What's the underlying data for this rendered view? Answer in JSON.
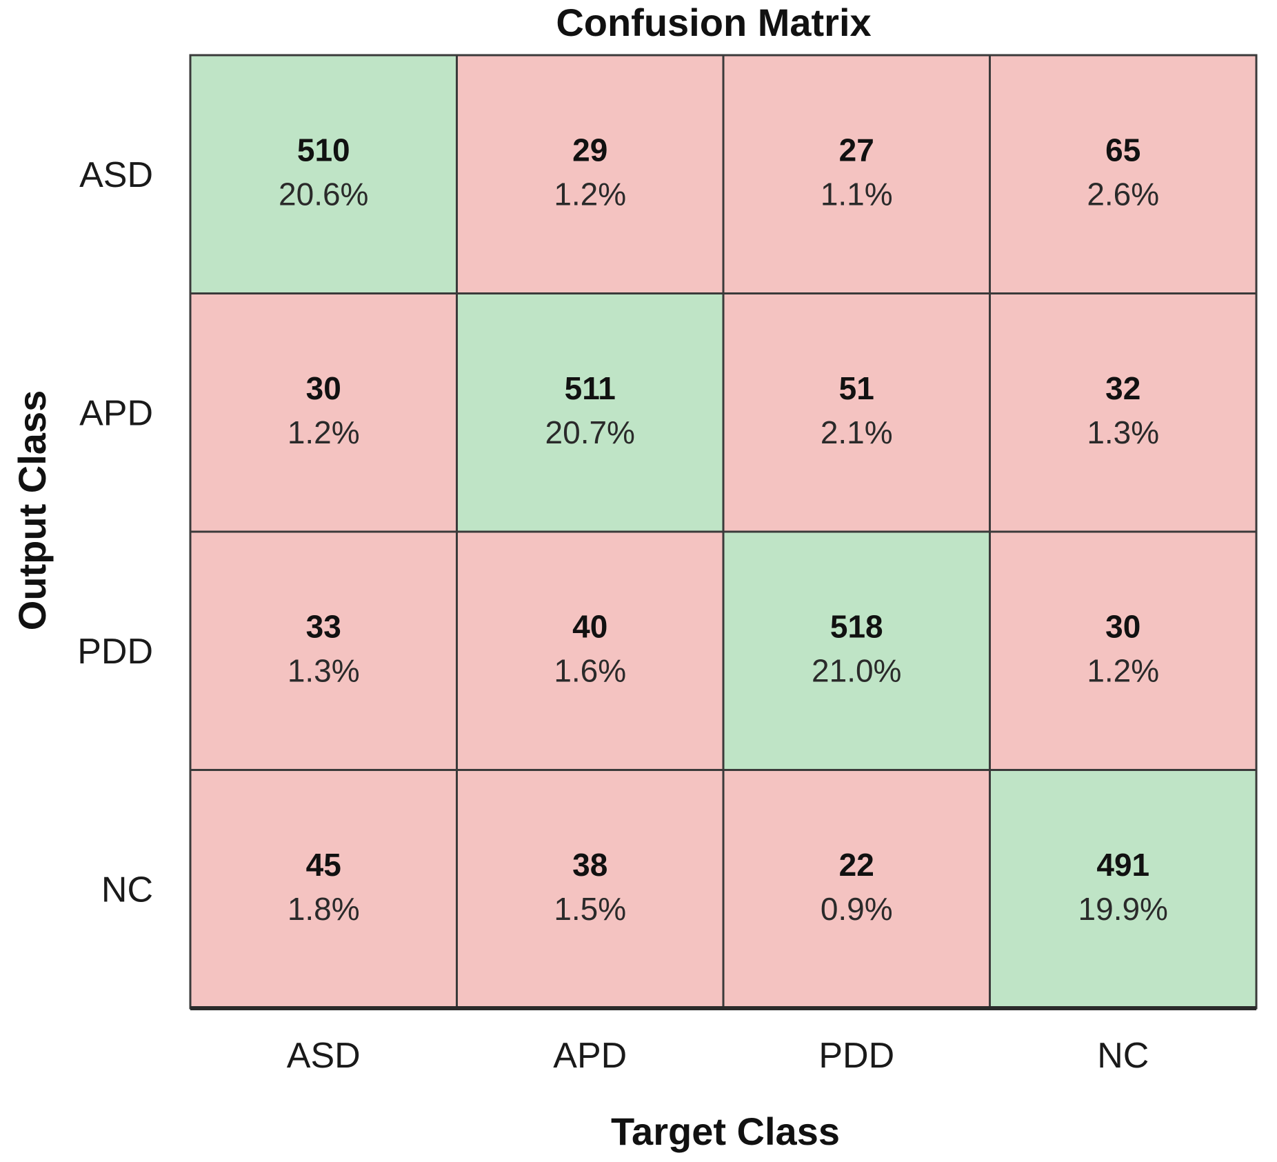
{
  "chart_data": {
    "type": "heatmap",
    "title": "Confusion Matrix",
    "xlabel": "Target Class",
    "ylabel": "Output Class",
    "x_categories": [
      "ASD",
      "APD",
      "PDD",
      "NC"
    ],
    "y_categories": [
      "ASD",
      "APD",
      "PDD",
      "NC"
    ],
    "counts": [
      [
        510,
        29,
        27,
        65
      ],
      [
        30,
        511,
        51,
        32
      ],
      [
        33,
        40,
        518,
        30
      ],
      [
        45,
        38,
        22,
        491
      ]
    ],
    "percentages": [
      [
        "20.6%",
        "1.2%",
        "1.1%",
        "2.6%"
      ],
      [
        "1.2%",
        "20.7%",
        "2.1%",
        "1.3%"
      ],
      [
        "1.3%",
        "1.6%",
        "21.0%",
        "1.2%"
      ],
      [
        "1.8%",
        "1.5%",
        "0.9%",
        "19.9%"
      ]
    ],
    "colors": {
      "correct": "#bfe4c6",
      "incorrect": "#f4c3c1",
      "grid": "#3a3a3a"
    }
  }
}
